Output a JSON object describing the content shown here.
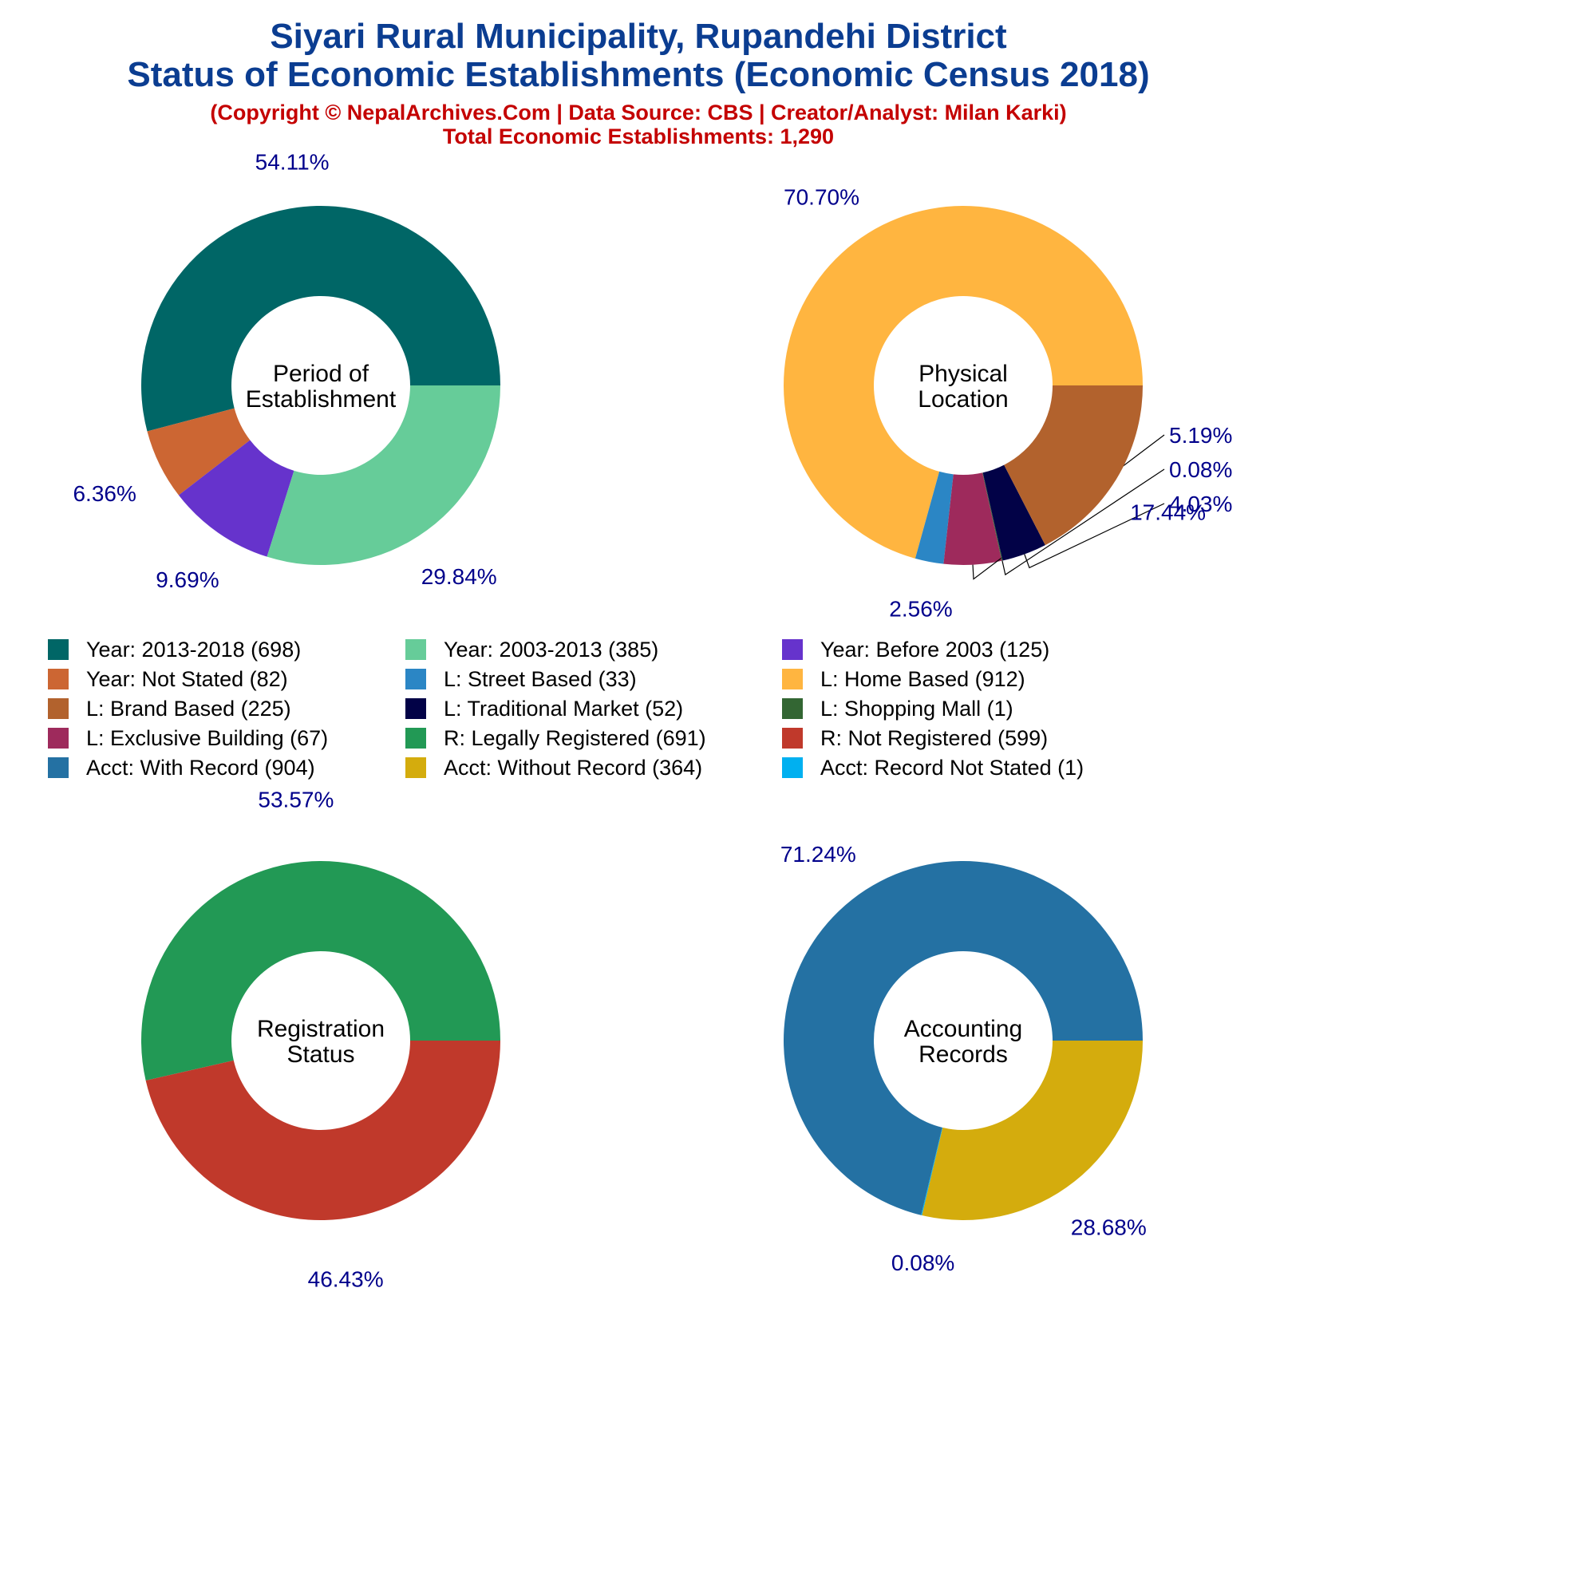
{
  "header": {
    "title_line1": "Siyari Rural Municipality, Rupandehi District",
    "title_line2": "Status of Economic Establishments (Economic Census 2018)",
    "subtitle_line1": "(Copyright © NepalArchives.Com | Data Source: CBS | Creator/Analyst: Milan Karki)",
    "subtitle_line2": "Total Economic Establishments: 1,290"
  },
  "legend": [
    {
      "label": "Year: 2013-2018 (698)",
      "color": "#006666"
    },
    {
      "label": "Year: 2003-2013 (385)",
      "color": "#66cc99"
    },
    {
      "label": "Year: Before 2003 (125)",
      "color": "#6633cc"
    },
    {
      "label": "Year: Not Stated (82)",
      "color": "#cc6633"
    },
    {
      "label": "L: Street Based (33)",
      "color": "#2b86c5"
    },
    {
      "label": "L: Home Based (912)",
      "color": "#ffb540"
    },
    {
      "label": "L: Brand Based (225)",
      "color": "#b2622d"
    },
    {
      "label": "L: Traditional Market (52)",
      "color": "#020247"
    },
    {
      "label": "L: Shopping Mall (1)",
      "color": "#336633"
    },
    {
      "label": "L: Exclusive Building (67)",
      "color": "#9e2a5c"
    },
    {
      "label": "R: Legally Registered (691)",
      "color": "#229955"
    },
    {
      "label": "R: Not Registered (599)",
      "color": "#c0392b"
    },
    {
      "label": "Acct: With Record (904)",
      "color": "#2471a3"
    },
    {
      "label": "Acct: Without Record (364)",
      "color": "#d4ac0d"
    },
    {
      "label": "Acct: Record Not Stated (1)",
      "color": "#00b0f0"
    }
  ],
  "chart_data": [
    {
      "type": "pie",
      "center_label": [
        "Period of",
        "Establishment"
      ],
      "slices": [
        {
          "category": "Year: 2013-2018",
          "value": 698,
          "percent": 54.11,
          "label": "54.11%",
          "color": "#006666"
        },
        {
          "category": "Year: Not Stated",
          "value": 82,
          "percent": 6.36,
          "label": "6.36%",
          "color": "#cc6633"
        },
        {
          "category": "Year: Before 2003",
          "value": 125,
          "percent": 9.69,
          "label": "9.69%",
          "color": "#6633cc"
        },
        {
          "category": "Year: 2003-2013",
          "value": 385,
          "percent": 29.84,
          "label": "29.84%",
          "color": "#66cc99"
        }
      ]
    },
    {
      "type": "pie",
      "center_label": [
        "Physical",
        "Location"
      ],
      "slices": [
        {
          "category": "L: Home Based",
          "value": 912,
          "percent": 70.7,
          "label": "70.70%",
          "color": "#ffb540"
        },
        {
          "category": "L: Street Based",
          "value": 33,
          "percent": 2.56,
          "label": "2.56%",
          "color": "#2b86c5"
        },
        {
          "category": "L: Exclusive Building",
          "value": 67,
          "percent": 5.19,
          "label": "5.19%",
          "color": "#9e2a5c"
        },
        {
          "category": "L: Shopping Mall",
          "value": 1,
          "percent": 0.08,
          "label": "0.08%",
          "color": "#336633"
        },
        {
          "category": "L: Traditional Market",
          "value": 52,
          "percent": 4.03,
          "label": "4.03%",
          "color": "#020247"
        },
        {
          "category": "L: Brand Based",
          "value": 225,
          "percent": 17.44,
          "label": "17.44%",
          "color": "#b2622d"
        }
      ]
    },
    {
      "type": "pie",
      "center_label": [
        "Registration",
        "Status"
      ],
      "slices": [
        {
          "category": "R: Legally Registered",
          "value": 691,
          "percent": 53.57,
          "label": "53.57%",
          "color": "#229955"
        },
        {
          "category": "R: Not Registered",
          "value": 599,
          "percent": 46.43,
          "label": "46.43%",
          "color": "#c0392b"
        }
      ]
    },
    {
      "type": "pie",
      "center_label": [
        "Accounting",
        "Records"
      ],
      "slices": [
        {
          "category": "Acct: With Record",
          "value": 904,
          "percent": 71.24,
          "label": "71.24%",
          "color": "#2471a3"
        },
        {
          "category": "Acct: Record Not Stated",
          "value": 1,
          "percent": 0.08,
          "label": "0.08%",
          "color": "#00b0f0"
        },
        {
          "category": "Acct: Without Record",
          "value": 364,
          "percent": 28.68,
          "label": "28.68%",
          "color": "#d4ac0d"
        }
      ]
    }
  ]
}
